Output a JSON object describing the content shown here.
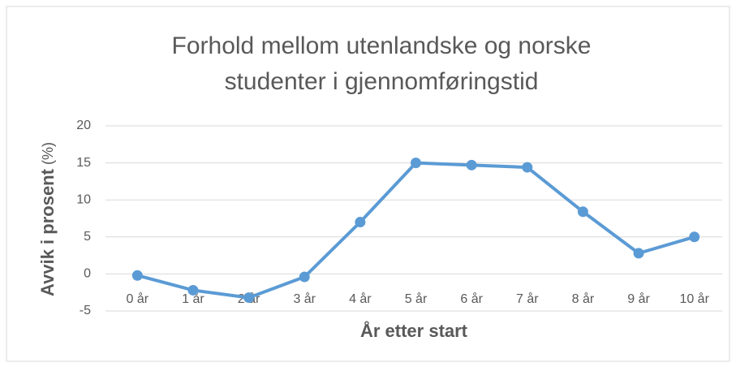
{
  "chart_data": {
    "type": "line",
    "title": [
      "Forhold mellom utenlandske og norske",
      "studenter i gjennomføringstid"
    ],
    "x_label": "År etter start",
    "y_label": "Avvik i prosent",
    "y_label_unit": "(%)",
    "categories": [
      "0 år",
      "1 år",
      "2 år",
      "3 år",
      "4 år",
      "5 år",
      "6 år",
      "7 år",
      "8 år",
      "9 år",
      "10 år"
    ],
    "values": [
      -0.2,
      -2.2,
      -3.2,
      -0.4,
      7.0,
      15.0,
      14.7,
      14.4,
      8.4,
      2.8,
      5.0
    ],
    "color": "#5b9bd5",
    "ylim": [
      -5,
      20
    ],
    "yticks": [
      -5,
      0,
      5,
      10,
      15,
      20
    ],
    "grid": true
  }
}
